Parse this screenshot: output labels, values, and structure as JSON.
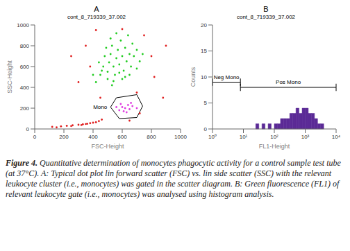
{
  "chart_data": [
    {
      "type": "scatter",
      "title": "A",
      "subtitle": "cont_8_719339_37.002",
      "x_label": "FSC-Height",
      "y_label": "SSC-Height",
      "xlim": [
        0,
        1000
      ],
      "ylim": [
        0,
        1000
      ],
      "xticks": [
        0,
        200,
        400,
        600,
        800,
        1000
      ],
      "yticks": [
        0,
        200,
        400,
        600,
        800,
        1000
      ],
      "marker": "dot",
      "series": [
        {
          "color": "#e02020",
          "points": [
            [
              120,
              20
            ],
            [
              180,
              25
            ],
            [
              220,
              30
            ],
            [
              260,
              35
            ],
            [
              300,
              40
            ],
            [
              330,
              45
            ],
            [
              360,
              50
            ],
            [
              380,
              55
            ],
            [
              400,
              60
            ],
            [
              420,
              65
            ],
            [
              440,
              75
            ],
            [
              150,
              15
            ],
            [
              250,
              28
            ],
            [
              320,
              38
            ],
            [
              350,
              48
            ],
            [
              460,
              90
            ],
            [
              300,
              450
            ],
            [
              350,
              800
            ],
            [
              420,
              950
            ],
            [
              600,
              960
            ],
            [
              750,
              900
            ],
            [
              800,
              700
            ],
            [
              820,
              500
            ],
            [
              700,
              350
            ],
            [
              880,
              300
            ],
            [
              450,
              300
            ],
            [
              380,
              600
            ],
            [
              900,
              800
            ],
            [
              250,
              700
            ],
            [
              650,
              80
            ],
            [
              720,
              150
            ]
          ]
        },
        {
          "color": "#22cc22",
          "points": [
            [
              420,
              450
            ],
            [
              450,
              520
            ],
            [
              470,
              600
            ],
            [
              480,
              700
            ],
            [
              500,
              550
            ],
            [
              510,
              640
            ],
            [
              520,
              720
            ],
            [
              530,
              800
            ],
            [
              540,
              600
            ],
            [
              550,
              520
            ],
            [
              560,
              680
            ],
            [
              570,
              760
            ],
            [
              580,
              620
            ],
            [
              590,
              850
            ],
            [
              600,
              700
            ],
            [
              610,
              560
            ],
            [
              620,
              780
            ],
            [
              630,
              650
            ],
            [
              640,
              900
            ],
            [
              650,
              720
            ],
            [
              660,
              600
            ],
            [
              670,
              820
            ],
            [
              680,
              700
            ],
            [
              700,
              760
            ],
            [
              720,
              650
            ],
            [
              540,
              460
            ],
            [
              500,
              480
            ],
            [
              460,
              560
            ],
            [
              440,
              640
            ],
            [
              600,
              480
            ],
            [
              580,
              540
            ],
            [
              620,
              500
            ],
            [
              520,
              870
            ],
            [
              560,
              920
            ],
            [
              490,
              780
            ],
            [
              650,
              520
            ],
            [
              700,
              580
            ],
            [
              740,
              720
            ],
            [
              400,
              520
            ],
            [
              530,
              420
            ]
          ]
        },
        {
          "color": "#e040e0",
          "points": [
            [
              580,
              180
            ],
            [
              600,
              210
            ],
            [
              620,
              200
            ],
            [
              640,
              230
            ],
            [
              610,
              170
            ],
            [
              650,
              190
            ],
            [
              670,
              220
            ],
            [
              590,
              240
            ],
            [
              630,
              160
            ],
            [
              660,
              250
            ],
            [
              700,
              200
            ],
            [
              560,
              210
            ]
          ]
        }
      ],
      "gate": {
        "label": "Mono",
        "color": "#000000",
        "vertices": [
          [
            520,
            210
          ],
          [
            580,
            100
          ],
          [
            700,
            110
          ],
          [
            740,
            220
          ],
          [
            700,
            330
          ],
          [
            560,
            300
          ]
        ]
      }
    },
    {
      "type": "histogram",
      "title": "B",
      "subtitle": "cont_8_719339_37.002",
      "x_label": "FL1-Height",
      "y_label": "Counts",
      "log": "x",
      "xlim": [
        1,
        10000
      ],
      "ylim": [
        0,
        20
      ],
      "xticks": [
        {
          "value": 1,
          "label": "10⁰"
        },
        {
          "value": 10,
          "label": "10¹"
        },
        {
          "value": 100,
          "label": "10²"
        },
        {
          "value": 1000,
          "label": "10³"
        },
        {
          "value": 10000,
          "label": "10⁴"
        }
      ],
      "yticks": [
        0,
        5,
        10,
        15,
        20
      ],
      "color": "#5b2a96",
      "bins": [
        25.12,
        31.62,
        39.81,
        50.12,
        63.1,
        79.43,
        100,
        125.9,
        158.5,
        199.5,
        251.2,
        316.2,
        398.1,
        501.2,
        631.0,
        794.3,
        1000,
        1259,
        1585,
        1995,
        2512,
        3162,
        3981
      ],
      "counts": [
        1,
        0,
        1,
        0,
        1,
        0,
        1,
        1,
        2,
        2,
        2,
        3,
        3,
        4,
        3,
        4,
        4,
        3,
        3,
        2,
        1,
        1
      ],
      "gates": [
        {
          "label": "Neg Mono",
          "range": [
            1,
            8
          ],
          "y": 9
        },
        {
          "label": "Pos Mono",
          "range": [
            8,
            10000
          ],
          "y": 8
        }
      ]
    }
  ],
  "caption": {
    "label": "Figure 4.",
    "text": "Quantitative determination of monocytes phagocytic activity for a control sample test tube (at 37°C). A: Typical dot plot lin forward scatter (FSC) vs. lin side scatter (SSC) with the relevant leukocyte cluster (i.e., monocytes) was gated in the scatter diagram. B: Green fluorescence (FL1) of relevant leukocyte gate (i.e., monocytes) was analysed using histogram analysis."
  }
}
